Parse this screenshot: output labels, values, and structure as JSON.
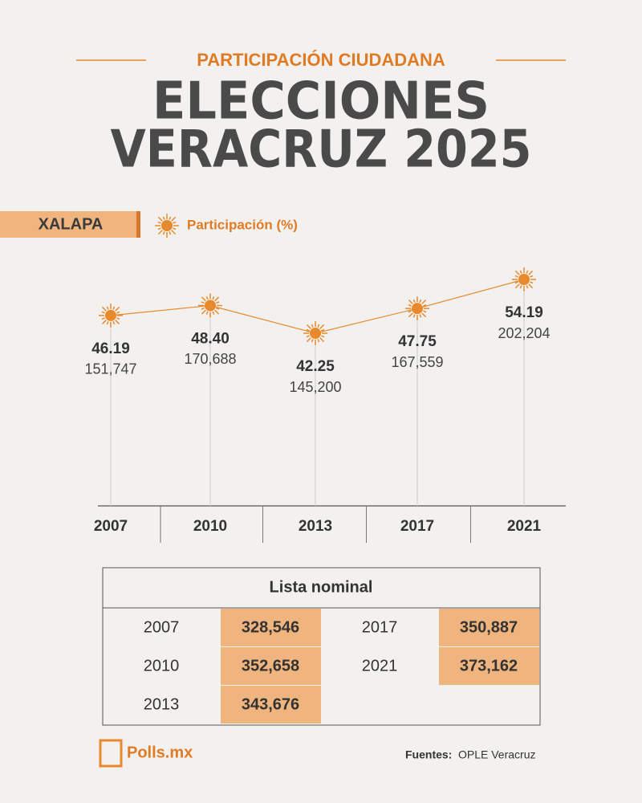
{
  "header": {
    "kicker": "PARTICIPACIÓN CIUDADANA",
    "title_line1": "ELECCIONES",
    "title_line2": "VERACRUZ 2025"
  },
  "chart_data": {
    "type": "line",
    "subtitle": "XALAPA",
    "categories": [
      "2007",
      "2010",
      "2013",
      "2017",
      "2021"
    ],
    "series": [
      {
        "name": "Participación (%)",
        "color": "#e8892b",
        "values": [
          46.19,
          48.4,
          42.25,
          47.75,
          54.19
        ],
        "value_labels": [
          "46.19",
          "48.40",
          "42.25",
          "47.75",
          "54.19"
        ]
      }
    ],
    "votes": [
      "151,747",
      "170,688",
      "145,200",
      "167,559",
      "202,204"
    ]
  },
  "table": {
    "title": "Lista nominal",
    "rows": [
      [
        "2007",
        "328,546"
      ],
      [
        "2010",
        "352,658"
      ],
      [
        "2013",
        "343,676"
      ],
      [
        "2017",
        "350,887"
      ],
      [
        "2021",
        "373,162"
      ]
    ]
  },
  "footer": {
    "logo": "Polls.mx",
    "sources_label": "Fuentes:",
    "sources": "OPLE Veracruz"
  }
}
